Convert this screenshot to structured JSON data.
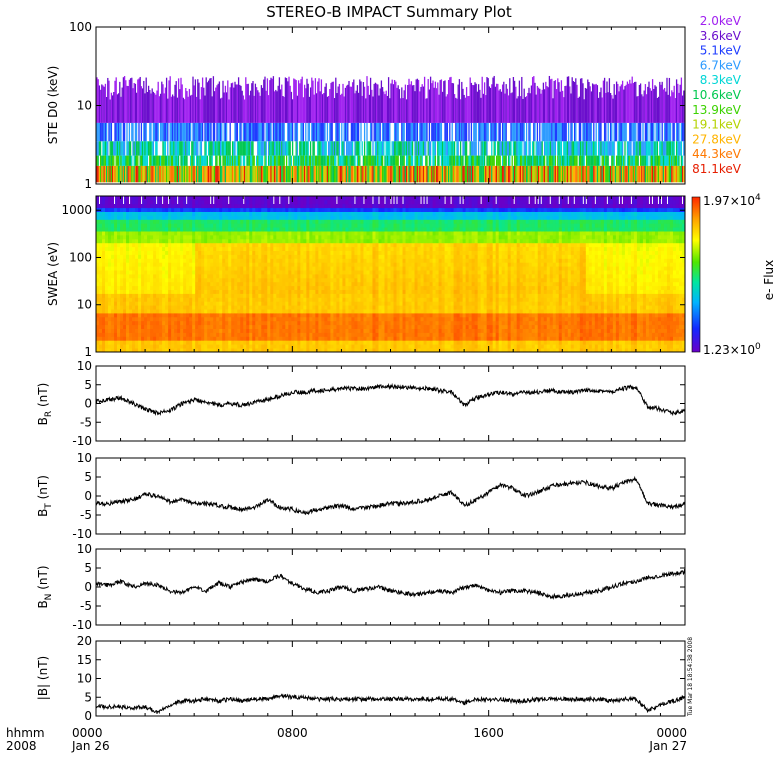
{
  "title": "STEREO-B IMPACT Summary Plot",
  "timestamp": "Tue Mar 18 18:54:38 2008",
  "time_axis": {
    "header_left": [
      "hhmm",
      "2008"
    ],
    "ticks": [
      {
        "hour": 0,
        "line1": "0000",
        "line2": "Jan 26"
      },
      {
        "hour": 8,
        "line1": "0800",
        "line2": ""
      },
      {
        "hour": 16,
        "line1": "1600",
        "line2": ""
      },
      {
        "hour": 24,
        "line1": "0000",
        "line2": "Jan 27"
      }
    ]
  },
  "colorbar": {
    "max_label": "1.97×10",
    "max_exp": "4",
    "min_label": "1.23×10",
    "min_exp": "0",
    "label": "e- Flux"
  },
  "chart_data": [
    {
      "type": "line",
      "panel": "ste",
      "ylabel": "STE D0 (keV)",
      "yscale": "log",
      "ylim": [
        1,
        100
      ],
      "yticks": [
        "1",
        "10",
        "100"
      ],
      "x_range_hours": [
        0,
        24
      ],
      "channels": [
        {
          "name": "2.0keV",
          "color": "#a020f0"
        },
        {
          "name": "3.6keV",
          "color": "#6a0dcd"
        },
        {
          "name": "5.1keV",
          "color": "#1e3cff"
        },
        {
          "name": "6.7keV",
          "color": "#2c9bff"
        },
        {
          "name": "8.3keV",
          "color": "#00d6d6"
        },
        {
          "name": "10.6keV",
          "color": "#00c850"
        },
        {
          "name": "13.9keV",
          "color": "#3cd200"
        },
        {
          "name": "19.1keV",
          "color": "#b4d200"
        },
        {
          "name": "27.8keV",
          "color": "#ffb400"
        },
        {
          "name": "44.3keV",
          "color": "#ff7800"
        },
        {
          "name": "81.1keV",
          "color": "#e61e00"
        }
      ]
    },
    {
      "type": "heatmap",
      "panel": "swea",
      "ylabel": "SWEA (eV)",
      "yscale": "log",
      "ylim": [
        1,
        2000
      ],
      "yticks": [
        "1",
        "10",
        "100",
        "1000"
      ],
      "x_range_hours": [
        0,
        24
      ],
      "zlim": [
        1.23,
        19700
      ],
      "zlabel": "e- Flux"
    },
    {
      "type": "line",
      "panel": "br",
      "ylabel_main": "B",
      "ylabel_sub": "R",
      "ylabel_unit": " (nT)",
      "ylim": [
        -10,
        10
      ],
      "yticks": [
        "-10",
        "-5",
        "0",
        "5",
        "10"
      ],
      "x": [
        0,
        0.5,
        1,
        1.5,
        2,
        2.5,
        3,
        3.5,
        4,
        4.5,
        5,
        5.5,
        6,
        6.5,
        7,
        7.5,
        8,
        8.5,
        9,
        9.5,
        10,
        10.5,
        11,
        11.5,
        12,
        12.5,
        13,
        13.5,
        14,
        14.5,
        15,
        15.5,
        16,
        16.5,
        17,
        17.5,
        18,
        18.5,
        19,
        19.5,
        20,
        20.5,
        21,
        21.5,
        22,
        22.5,
        23,
        23.5,
        24
      ],
      "y": [
        0.5,
        1.0,
        1.5,
        0.0,
        -1.5,
        -2.5,
        -2.0,
        0.0,
        1.0,
        0.5,
        -0.5,
        0.0,
        -0.5,
        0.5,
        1.0,
        2.0,
        3.0,
        3.0,
        3.5,
        3.5,
        4.0,
        4.0,
        4.0,
        4.5,
        4.5,
        4.5,
        4.0,
        4.0,
        3.5,
        3.0,
        -0.5,
        1.5,
        2.5,
        3.0,
        2.5,
        3.0,
        3.0,
        3.5,
        3.0,
        3.0,
        3.5,
        3.5,
        3.0,
        4.0,
        4.5,
        -1.0,
        -1.5,
        -2.5,
        -2.0
      ]
    },
    {
      "type": "line",
      "panel": "bt",
      "ylabel_main": "B",
      "ylabel_sub": "T",
      "ylabel_unit": " (nT)",
      "ylim": [
        -10,
        10
      ],
      "yticks": [
        "-10",
        "-5",
        "0",
        "5",
        "10"
      ],
      "x": [
        0,
        0.5,
        1,
        1.5,
        2,
        2.5,
        3,
        3.5,
        4,
        4.5,
        5,
        5.5,
        6,
        6.5,
        7,
        7.5,
        8,
        8.5,
        9,
        9.5,
        10,
        10.5,
        11,
        11.5,
        12,
        12.5,
        13,
        13.5,
        14,
        14.5,
        15,
        15.5,
        16,
        16.5,
        17,
        17.5,
        18,
        18.5,
        19,
        19.5,
        20,
        20.5,
        21,
        21.5,
        22,
        22.5,
        23,
        23.5,
        24
      ],
      "y": [
        -2.0,
        -2.0,
        -1.5,
        -1.0,
        0.5,
        0.0,
        -1.5,
        -1.0,
        -2.0,
        -2.0,
        -2.5,
        -3.0,
        -3.5,
        -3.0,
        -1.0,
        -3.0,
        -3.5,
        -4.5,
        -3.5,
        -3.0,
        -2.5,
        -3.5,
        -3.0,
        -2.5,
        -2.0,
        -2.0,
        -1.5,
        -1.0,
        0.0,
        1.0,
        -2.5,
        -1.0,
        1.0,
        3.0,
        2.0,
        0.0,
        1.0,
        2.5,
        3.0,
        3.5,
        3.5,
        2.5,
        2.0,
        3.5,
        4.5,
        -2.0,
        -2.5,
        -3.0,
        -2.0
      ]
    },
    {
      "type": "line",
      "panel": "bn",
      "ylabel_main": "B",
      "ylabel_sub": "N",
      "ylabel_unit": " (nT)",
      "ylim": [
        -10,
        10
      ],
      "yticks": [
        "-10",
        "-5",
        "0",
        "5",
        "10"
      ],
      "x": [
        0,
        0.5,
        1,
        1.5,
        2,
        2.5,
        3,
        3.5,
        4,
        4.5,
        5,
        5.5,
        6,
        6.5,
        7,
        7.5,
        8,
        8.5,
        9,
        9.5,
        10,
        10.5,
        11,
        11.5,
        12,
        12.5,
        13,
        13.5,
        14,
        14.5,
        15,
        15.5,
        16,
        16.5,
        17,
        17.5,
        18,
        18.5,
        19,
        19.5,
        20,
        20.5,
        21,
        21.5,
        22,
        22.5,
        23,
        23.5,
        24
      ],
      "y": [
        1.0,
        0.5,
        1.5,
        0.0,
        1.0,
        0.5,
        -1.0,
        -1.5,
        0.0,
        -1.0,
        1.0,
        0.0,
        1.5,
        2.0,
        1.5,
        3.0,
        1.0,
        -0.5,
        -1.5,
        -1.0,
        0.0,
        -1.0,
        -0.5,
        0.0,
        -1.0,
        -1.5,
        -2.0,
        -1.5,
        -1.0,
        -1.5,
        0.0,
        0.5,
        -1.0,
        -1.5,
        -1.0,
        -1.0,
        -1.5,
        -2.5,
        -2.5,
        -2.0,
        -1.5,
        -1.0,
        0.0,
        1.0,
        1.5,
        2.5,
        3.0,
        3.5,
        4.0
      ]
    },
    {
      "type": "line",
      "panel": "bmag",
      "ylabel_main": "|B| (nT)",
      "ylim": [
        0,
        20
      ],
      "yticks": [
        "0",
        "5",
        "10",
        "15",
        "20"
      ],
      "x": [
        0,
        0.5,
        1,
        1.5,
        2,
        2.5,
        3,
        3.5,
        4,
        4.5,
        5,
        5.5,
        6,
        6.5,
        7,
        7.5,
        8,
        8.5,
        9,
        9.5,
        10,
        10.5,
        11,
        11.5,
        12,
        12.5,
        13,
        13.5,
        14,
        14.5,
        15,
        15.5,
        16,
        16.5,
        17,
        17.5,
        18,
        18.5,
        19,
        19.5,
        20,
        20.5,
        21,
        21.5,
        22,
        22.5,
        23,
        23.5,
        24
      ],
      "y": [
        2.5,
        2.5,
        2.5,
        2.0,
        2.5,
        1.0,
        3.0,
        4.0,
        4.0,
        4.5,
        4.0,
        4.5,
        4.0,
        4.5,
        4.5,
        5.5,
        5.0,
        5.0,
        4.5,
        4.5,
        4.5,
        4.5,
        4.5,
        4.5,
        4.5,
        4.5,
        4.5,
        4.5,
        4.5,
        4.5,
        3.5,
        4.5,
        4.5,
        4.5,
        4.0,
        4.0,
        4.5,
        4.5,
        4.5,
        4.5,
        4.5,
        4.5,
        4.0,
        4.5,
        4.5,
        1.5,
        3.0,
        4.0,
        5.0
      ]
    }
  ]
}
